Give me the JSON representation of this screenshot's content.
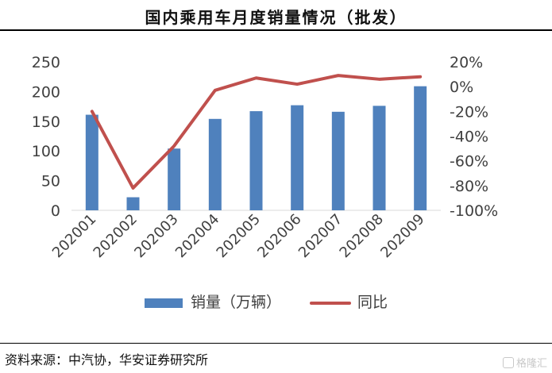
{
  "title": "国内乘用车月度销量情况（批发）",
  "source": "资料来源：中汽协，华安证券研究所",
  "watermark": "格隆汇",
  "chart_data": {
    "type": "bar",
    "title": "国内乘用车月度销量情况（批发）",
    "categories": [
      "202001",
      "202002",
      "202003",
      "202004",
      "202005",
      "202006",
      "202007",
      "202008",
      "202009"
    ],
    "series": [
      {
        "name": "销量（万辆）",
        "type": "bar",
        "axis": "left",
        "color": "#4f81bd",
        "values": [
          161,
          22,
          104,
          154,
          167,
          177,
          166,
          176,
          209
        ]
      },
      {
        "name": "同比",
        "type": "line",
        "axis": "right",
        "color": "#c0504d",
        "values": [
          -20,
          -82,
          -48,
          -3,
          7,
          2,
          9,
          6,
          8
        ]
      }
    ],
    "left_axis": {
      "ylim": [
        0,
        250
      ],
      "ticks": [
        "0",
        "50",
        "100",
        "150",
        "200",
        "250"
      ]
    },
    "right_axis": {
      "ylim": [
        -100,
        20
      ],
      "ticks": [
        "-100%",
        "-80%",
        "-60%",
        "-40%",
        "-20%",
        "0%",
        "20%"
      ]
    },
    "legend_position": "bottom",
    "grid": false
  }
}
